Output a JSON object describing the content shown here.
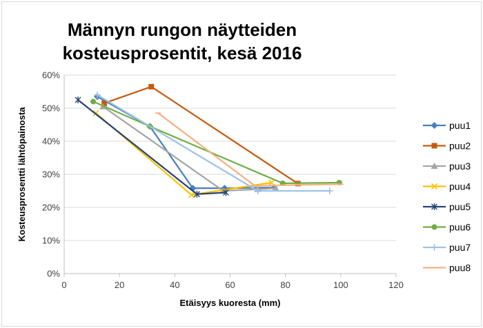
{
  "chart_data": {
    "type": "scatter",
    "mode": "lines+markers",
    "title_lines": [
      "Männyn rungon näytteiden",
      "kosteusprosentit, kesä 2016"
    ],
    "xlabel": "Etäisyys kuoresta (mm)",
    "ylabel": "Kosteusprosentti lähtöpainosta",
    "xlim": [
      0,
      120
    ],
    "ylim": [
      0,
      60
    ],
    "x_ticks": [
      0,
      20,
      40,
      60,
      80,
      100,
      120
    ],
    "y_ticks": [
      0,
      10,
      20,
      30,
      40,
      50,
      60
    ],
    "y_tick_labels": [
      "0%",
      "10%",
      "20%",
      "30%",
      "40%",
      "50%",
      "60%"
    ],
    "grid": "horizontal",
    "legend_position": "right",
    "series": [
      {
        "name": "puu1",
        "color": "#4a7ebb",
        "marker": "diamond",
        "points": [
          [
            12,
            53.5
          ],
          [
            31,
            44.5
          ],
          [
            46.5,
            25.8
          ],
          [
            58,
            25.8
          ],
          [
            76,
            26
          ]
        ]
      },
      {
        "name": "puu2",
        "color": "#c55a11",
        "marker": "square",
        "points": [
          [
            14.5,
            51.5
          ],
          [
            31.5,
            56.5
          ],
          [
            84.5,
            27.2
          ]
        ]
      },
      {
        "name": "puu3",
        "color": "#a5a5a5",
        "marker": "triangle",
        "points": [
          [
            14,
            50.5
          ],
          [
            57.5,
            25
          ],
          [
            70,
            25.5
          ],
          [
            76.5,
            25.8
          ]
        ]
      },
      {
        "name": "puu4",
        "color": "#ffc000",
        "marker": "x",
        "points": [
          [
            11.5,
            48.5
          ],
          [
            46,
            23.8
          ],
          [
            75,
            27.5
          ]
        ]
      },
      {
        "name": "puu5",
        "color": "#264478",
        "marker": "asterisk",
        "points": [
          [
            5,
            52.5
          ],
          [
            48,
            24
          ],
          [
            58.5,
            24.5
          ]
        ]
      },
      {
        "name": "puu6",
        "color": "#70ad47",
        "marker": "circle",
        "points": [
          [
            10.5,
            52
          ],
          [
            31,
            44.5
          ],
          [
            79,
            27.3
          ],
          [
            99.5,
            27.5
          ]
        ]
      },
      {
        "name": "puu7",
        "color": "#9dc3e6",
        "marker": "plus",
        "points": [
          [
            12,
            54
          ],
          [
            70,
            25
          ],
          [
            96,
            25
          ]
        ]
      },
      {
        "name": "puu8",
        "color": "#f4b183",
        "marker": "dash",
        "points": [
          [
            34,
            48.5
          ],
          [
            69,
            26.5
          ],
          [
            84,
            26.8
          ],
          [
            100,
            27
          ]
        ]
      }
    ]
  }
}
